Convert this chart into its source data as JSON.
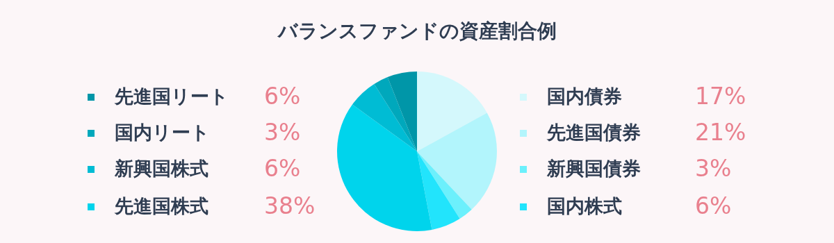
{
  "chart_data": {
    "type": "pie",
    "title": "バランスファンドの資産割合例",
    "categories": [
      "国内債券",
      "先進国債券",
      "新興国債券",
      "国内株式",
      "先進国株式",
      "新興国株式",
      "国内リート",
      "先進国リート"
    ],
    "values": [
      17,
      21,
      3,
      6,
      38,
      6,
      3,
      6
    ],
    "colors": [
      "#d4f8fc",
      "#b2f5fc",
      "#6cf0fc",
      "#22e4fc",
      "#00d4ec",
      "#00bcd4",
      "#00a8bc",
      "#0096a8"
    ],
    "value_labels": [
      "17%",
      "21%",
      "3%",
      "6%",
      "38%",
      "6%",
      "3%",
      "6%"
    ],
    "legend": "left"
  }
}
